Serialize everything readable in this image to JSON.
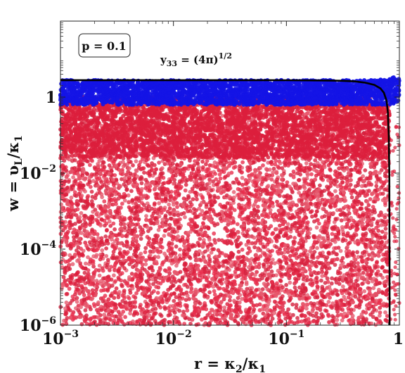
{
  "chart_data": {
    "type": "scatter",
    "xscale": "log",
    "yscale": "log",
    "xlim": [
      0.001,
      1
    ],
    "ylim": [
      1e-06,
      100
    ],
    "xlabel": "r = κ2/κ1",
    "ylabel": "w = υL/κ1",
    "x_ticks": [
      {
        "value": 0.001,
        "base": "10",
        "exp": "−3"
      },
      {
        "value": 0.01,
        "base": "10",
        "exp": "−2"
      },
      {
        "value": 0.1,
        "base": "10",
        "exp": "−1"
      },
      {
        "value": 1,
        "base": "1",
        "exp": ""
      }
    ],
    "y_ticks": [
      {
        "value": 1e-06,
        "base": "10",
        "exp": "−6"
      },
      {
        "value": 0.0001,
        "base": "10",
        "exp": "−4"
      },
      {
        "value": 0.01,
        "base": "10",
        "exp": "−2"
      },
      {
        "value": 1,
        "base": "1",
        "exp": ""
      }
    ],
    "series": [
      {
        "color": "#dc1e3c",
        "description_x_range": [
          0.001,
          0.82
        ],
        "description_y_range": [
          1e-06,
          1.0
        ]
      },
      {
        "color": "#1414e6",
        "description_x_range": [
          0.001,
          1.0
        ],
        "description_y_range": [
          0.3,
          3.2
        ]
      }
    ],
    "curve": {
      "label": "y33 = (4π)^1/2",
      "color": "#000000",
      "plateau_y": 2.8,
      "x_end": 0.82,
      "points": [
        [
          0.001,
          2.8
        ],
        [
          0.01,
          2.8
        ],
        [
          0.05,
          2.8
        ],
        [
          0.1,
          2.78
        ],
        [
          0.2,
          2.75
        ],
        [
          0.3,
          2.7
        ],
        [
          0.4,
          2.6
        ],
        [
          0.5,
          2.4
        ],
        [
          0.6,
          2.1
        ],
        [
          0.68,
          1.7
        ],
        [
          0.73,
          1.3
        ],
        [
          0.77,
          0.8
        ],
        [
          0.79,
          0.4
        ],
        [
          0.805,
          0.1
        ],
        [
          0.815,
          0.01
        ],
        [
          0.82,
          1e-06
        ]
      ]
    },
    "box_label": "p = 0.1",
    "grid": false,
    "legend": "none"
  }
}
